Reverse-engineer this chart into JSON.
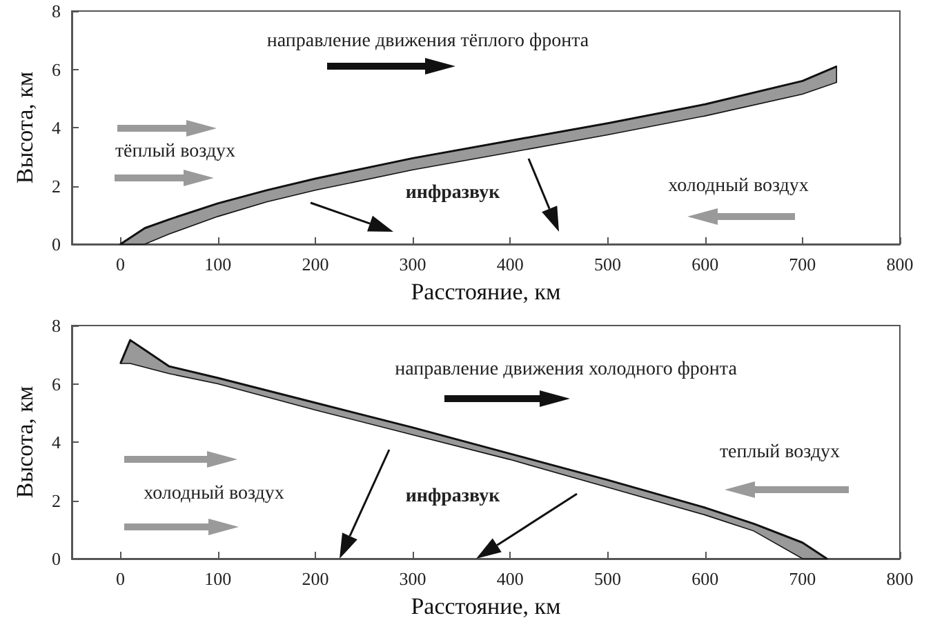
{
  "chart_data": [
    {
      "type": "line",
      "xlabel": "Расстояние, км",
      "ylabel": "Высота, км",
      "xlim": [
        -50,
        800
      ],
      "ylim": [
        0,
        8
      ],
      "xticks": [
        0,
        100,
        200,
        300,
        400,
        500,
        600,
        700,
        800
      ],
      "yticks": [
        0,
        2,
        4,
        6,
        8
      ],
      "marker": "none",
      "line_style": "solid",
      "annotations": [
        "направление движения тёплого фронта",
        "тёплый воздух",
        "инфразвук",
        "холодный воздух"
      ],
      "series": [
        {
          "color": "#111111",
          "x": [
            0,
            25,
            50,
            100,
            150,
            200,
            300,
            400,
            500,
            600,
            700,
            735
          ],
          "values": [
            0,
            0.55,
            0.85,
            1.4,
            1.85,
            2.25,
            2.95,
            3.55,
            4.15,
            4.8,
            5.6,
            6.1
          ],
          "lower": [
            0,
            0,
            0.35,
            0.95,
            1.45,
            1.85,
            2.55,
            3.15,
            3.75,
            4.4,
            5.15,
            5.55
          ],
          "upper": [
            0,
            0.55,
            0.85,
            1.4,
            1.85,
            2.25,
            2.95,
            3.55,
            4.15,
            4.8,
            5.6,
            6.1
          ]
        }
      ]
    },
    {
      "type": "line",
      "xlabel": "Расстояние, км",
      "ylabel": "Высота, км",
      "xlim": [
        -50,
        800
      ],
      "ylim": [
        0,
        8
      ],
      "xticks": [
        0,
        100,
        200,
        300,
        400,
        500,
        600,
        700,
        800
      ],
      "yticks": [
        0,
        2,
        4,
        6,
        8
      ],
      "marker": "none",
      "line_style": "solid",
      "annotations": [
        "направление движения холодного фронта",
        "холодный воздух",
        "инфразвук",
        "теплый воздух"
      ],
      "series": [
        {
          "color": "#111111",
          "x": [
            0,
            10,
            50,
            100,
            200,
            300,
            400,
            500,
            600,
            650,
            700,
            725
          ],
          "values": [
            6.7,
            7.5,
            6.6,
            6.2,
            5.35,
            4.5,
            3.6,
            2.7,
            1.75,
            1.2,
            0.55,
            0
          ],
          "lower": [
            6.7,
            6.7,
            6.35,
            6.0,
            5.1,
            4.25,
            3.4,
            2.45,
            1.5,
            0.95,
            0,
            0
          ],
          "upper": [
            6.7,
            7.5,
            6.6,
            6.2,
            5.35,
            4.5,
            3.6,
            2.7,
            1.75,
            1.2,
            0.55,
            0
          ]
        }
      ]
    }
  ]
}
